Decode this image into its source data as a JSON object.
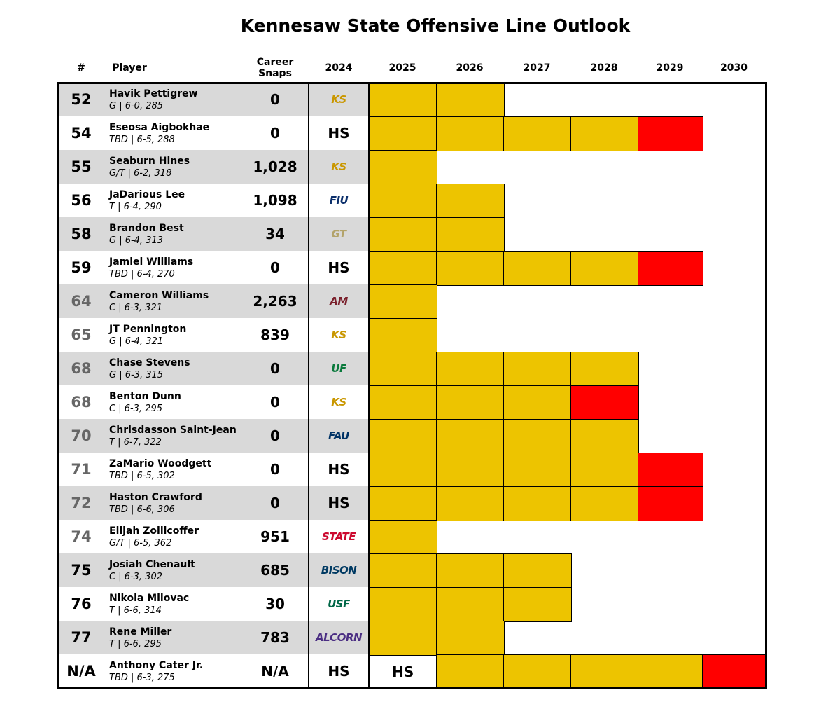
{
  "header": {
    "title": "Kennesaw State Offensive Line Outlook"
  },
  "table": {
    "columns": [
      "#",
      "Player",
      "Career Snaps",
      "2024",
      "2025",
      "2026",
      "2027",
      "2028",
      "2029",
      "2030"
    ],
    "stripe_color": "#d9d9d9",
    "rows": [
      {
        "number": 52,
        "name": "Havik Pettigrew",
        "details": "G | 6-0, 285",
        "snaps": 0,
        "y2024": {
          "text": "KS",
          "color": "#c99700"
        },
        "cells": [
          "#edc400",
          "#edc400",
          null,
          null,
          null,
          null
        ]
      },
      {
        "number": 54,
        "name": "Eseosa Aigbokhae",
        "details": "TBD | 6-5, 288",
        "snaps": 0,
        "y2024": "HS",
        "cells": [
          "#edc400",
          "#edc400",
          "#edc400",
          "#edc400",
          "#ff0000",
          null
        ]
      },
      {
        "number": 55,
        "name": "Seaburn Hines",
        "details": "G/T | 6-2, 318",
        "snaps": "1,028",
        "y2024": {
          "text": "KS",
          "color": "#c99700"
        },
        "cells": [
          "#edc400",
          null,
          null,
          null,
          null,
          null
        ]
      },
      {
        "number": 56,
        "name": "JaDarious Lee",
        "details": "T | 6-4, 290",
        "snaps": "1,098",
        "y2024": {
          "text": "FIU",
          "color": "#0b2f6b"
        },
        "cells": [
          "#edc400",
          "#edc400",
          null,
          null,
          null,
          null
        ]
      },
      {
        "number": 58,
        "name": "Brandon Best",
        "details": "G | 6-4, 313",
        "snaps": 34,
        "y2024": {
          "text": "GT",
          "color": "#b3a369"
        },
        "cells": [
          "#edc400",
          "#edc400",
          null,
          null,
          null,
          null
        ]
      },
      {
        "number": 59,
        "name": "Jamiel Williams",
        "details": "TBD | 6-4, 270",
        "snaps": 0,
        "y2024": "HS",
        "cells": [
          "#edc400",
          "#edc400",
          "#edc400",
          "#edc400",
          "#ff0000",
          null
        ]
      },
      {
        "number": 64,
        "name": "Cameron Williams",
        "details": "C | 6-3, 321",
        "snaps": "2,263",
        "y2024": {
          "text": "AM",
          "color": "#7a1f2b"
        },
        "number_color": "#666666",
        "cells": [
          "#edc400",
          null,
          null,
          null,
          null,
          null
        ]
      },
      {
        "number": 65,
        "name": "JT Pennington",
        "details": "G | 6-4, 321",
        "snaps": 839,
        "y2024": {
          "text": "KS",
          "color": "#c99700"
        },
        "number_color": "#666666",
        "cells": [
          "#edc400",
          null,
          null,
          null,
          null,
          null
        ]
      },
      {
        "number": 68,
        "name": "Chase Stevens",
        "details": "G | 6-3, 315",
        "snaps": 0,
        "y2024": {
          "text": "UF",
          "color": "#0a7a3c"
        },
        "number_color": "#666666",
        "cells": [
          "#edc400",
          "#edc400",
          "#edc400",
          "#edc400",
          null,
          null
        ]
      },
      {
        "number": 68,
        "name": "Benton Dunn",
        "details": "C | 6-3, 295",
        "snaps": 0,
        "y2024": {
          "text": "KS",
          "color": "#c99700"
        },
        "number_color": "#666666",
        "cells": [
          "#edc400",
          "#edc400",
          "#edc400",
          "#ff0000",
          null,
          null
        ]
      },
      {
        "number": 70,
        "name": "Chrisdasson Saint-Jean",
        "details": "T | 6-7, 322",
        "snaps": 0,
        "y2024": {
          "text": "FAU",
          "color": "#003366"
        },
        "number_color": "#666666",
        "cells": [
          "#edc400",
          "#edc400",
          "#edc400",
          "#edc400",
          null,
          null
        ]
      },
      {
        "number": 71,
        "name": "ZaMario Woodgett",
        "details": "TBD | 6-5, 302",
        "snaps": 0,
        "y2024": "HS",
        "number_color": "#666666",
        "cells": [
          "#edc400",
          "#edc400",
          "#edc400",
          "#edc400",
          "#ff0000",
          null
        ]
      },
      {
        "number": 72,
        "name": "Haston Crawford",
        "details": "TBD | 6-6, 306",
        "snaps": 0,
        "y2024": "HS",
        "number_color": "#666666",
        "cells": [
          "#edc400",
          "#edc400",
          "#edc400",
          "#edc400",
          "#ff0000",
          null
        ]
      },
      {
        "number": 74,
        "name": "Elijah Zollicoffer",
        "details": "G/T | 6-5, 362",
        "snaps": 951,
        "y2024": {
          "text": "STATE",
          "color": "#cc092f"
        },
        "number_color": "#666666",
        "cells": [
          "#edc400",
          null,
          null,
          null,
          null,
          null
        ]
      },
      {
        "number": 75,
        "name": "Josiah Chenault",
        "details": "C | 6-3, 302",
        "snaps": 685,
        "y2024": {
          "text": "BISON",
          "color": "#003a63"
        },
        "cells": [
          "#edc400",
          "#edc400",
          "#edc400",
          null,
          null,
          null
        ]
      },
      {
        "number": 76,
        "name": "Nikola Milovac",
        "details": "T | 6-6, 314",
        "snaps": 30,
        "y2024": {
          "text": "USF",
          "color": "#006747"
        },
        "cells": [
          "#edc400",
          "#edc400",
          "#edc400",
          null,
          null,
          null
        ]
      },
      {
        "number": 77,
        "name": "Rene Miller",
        "details": "T | 6-6, 295",
        "snaps": 783,
        "y2024": {
          "text": "ALCORN",
          "color": "#4b2e83"
        },
        "cells": [
          "#edc400",
          "#edc400",
          null,
          null,
          null,
          null
        ]
      },
      {
        "number": "N/A",
        "name": "Anthony Cater Jr.",
        "details": "TBD | 6-3, 275",
        "snaps": "N/A",
        "y2024": "HS",
        "cells": [
          "HS",
          "#edc400",
          "#edc400",
          "#edc400",
          "#edc400",
          "#ff0000"
        ]
      }
    ]
  }
}
